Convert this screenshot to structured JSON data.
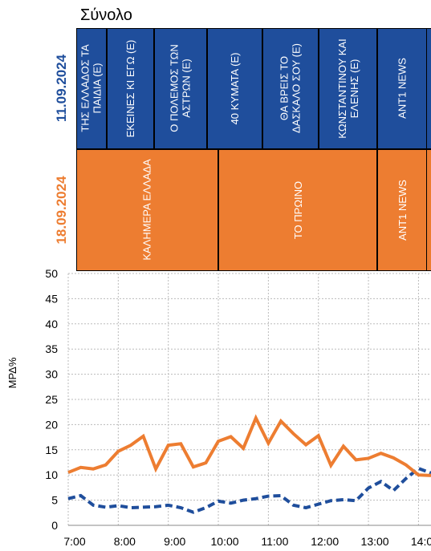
{
  "title": "Σύνολο",
  "schedule": [
    {
      "date": "11.09.2024",
      "programs": [
        "ΤΗΣ ΕΛΛΑΔΟΣ ΤΑ ΠΑΙΔΙΑ (Ε)",
        "ΕΚΕΙΝΕΣ ΚΙ ΕΓΩ (Ε)",
        "Ο ΠΟΛΕΜΟΣ ΤΩΝ ΑΣΤΡΩΝ (Ε)",
        "40 ΚΥΜΑΤΑ (Ε)",
        "ΘΑ ΒΡΕΙΣ ΤΟ ΔΑΣΚΑΛΟ ΣΟΥ (Ε)",
        "ΚΩΝΣΤΑΝΤΙΝΟΥ ΚΑΙ ΕΛΕΝΗΣ (Ε)",
        "ANT1 NEWS"
      ]
    },
    {
      "date": "18.09.2024",
      "programs": [
        "ΚΑΛΗΜΕΡΑ ΕΛΛΑΔΑ",
        "ΤΟ ΠΡΩΙΝΟ",
        "ANT1 NEWS"
      ]
    }
  ],
  "chart_data": {
    "type": "line",
    "y_label": "ΜΡΔ%",
    "grid": true,
    "x": [
      7,
      7.25,
      7.5,
      7.75,
      8,
      8.25,
      8.5,
      8.75,
      9,
      9.25,
      9.5,
      9.75,
      10,
      10.25,
      10.5,
      10.75,
      11,
      11.25,
      11.5,
      11.75,
      12,
      12.25,
      12.5,
      12.75,
      13,
      13.25,
      13.5,
      13.75,
      14,
      14.25
    ],
    "xlim": [
      7,
      14.25
    ],
    "xticks": [
      {
        "value": 7,
        "label": "7:00"
      },
      {
        "value": 8,
        "label": "8:00"
      },
      {
        "value": 9,
        "label": "9:00"
      },
      {
        "value": 10,
        "label": "10:00"
      },
      {
        "value": 11,
        "label": "11:00"
      },
      {
        "value": 12,
        "label": "12:00"
      },
      {
        "value": 13,
        "label": "13:00"
      },
      {
        "value": 14,
        "label": "14:00"
      }
    ],
    "ylim": [
      0,
      50
    ],
    "yticks": [
      0,
      5,
      10,
      15,
      20,
      25,
      30,
      35,
      40,
      45,
      50
    ],
    "series": [
      {
        "color": "#1f4e9c",
        "dash": true,
        "values": [
          5.3,
          5.9,
          4.0,
          3.6,
          3.9,
          3.5,
          3.6,
          3.7,
          4.0,
          3.5,
          2.6,
          3.5,
          4.8,
          4.4,
          5.0,
          5.3,
          5.8,
          5.9,
          4.0,
          3.5,
          4.2,
          4.9,
          5.1,
          4.9,
          7.4,
          8.7,
          6.9,
          9.3,
          11.3,
          10.4
        ]
      },
      {
        "color": "#ed7d31",
        "dash": false,
        "values": [
          10.5,
          11.5,
          11.2,
          12.0,
          14.7,
          15.9,
          17.7,
          11.2,
          15.9,
          16.2,
          11.6,
          12.4,
          16.7,
          17.6,
          15.3,
          21.3,
          16.3,
          20.7,
          18.2,
          16.0,
          17.8,
          11.9,
          15.7,
          13.0,
          13.3,
          14.3,
          13.4,
          12.0,
          10.0,
          9.9
        ]
      }
    ]
  }
}
